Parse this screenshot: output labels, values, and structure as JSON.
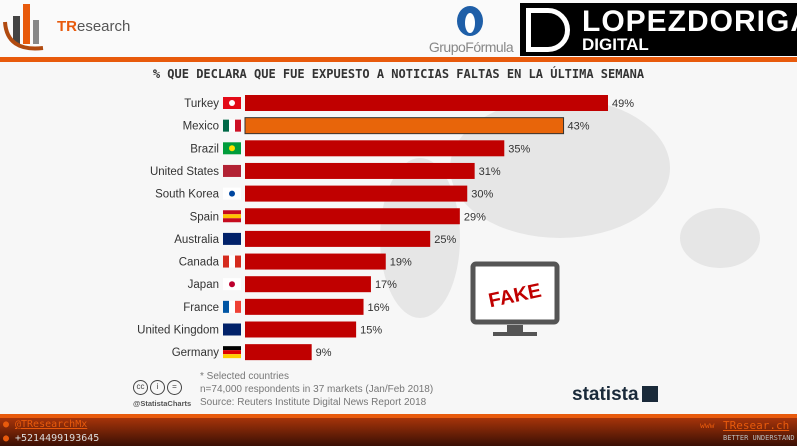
{
  "header": {
    "brand_left": "TResearch",
    "brand_left_accent": "TR",
    "brand_left_rest": "esearch",
    "logo_middle": "GrupoFórmula",
    "logo_right_line1": "LOPEZDORIGA",
    "logo_right_line2": "DIGITAL"
  },
  "chart_data": {
    "type": "bar",
    "orientation": "horizontal",
    "title": "% QUE DECLARA QUE FUE EXPUESTO A NOTICIAS FALTAS EN LA ÚLTIMA SEMANA",
    "categories": [
      "Turkey",
      "Mexico",
      "Brazil",
      "United States",
      "South Korea",
      "Spain",
      "Australia",
      "Canada",
      "Japan",
      "France",
      "United Kingdom",
      "Germany"
    ],
    "values": [
      49,
      43,
      35,
      31,
      30,
      29,
      25,
      19,
      17,
      16,
      15,
      9
    ],
    "data_labels": [
      "49%",
      "43%",
      "35%",
      "31%",
      "30%",
      "29%",
      "25%",
      "19%",
      "17%",
      "16%",
      "15%",
      "9%"
    ],
    "unit": "%",
    "xlim": [
      0,
      50
    ],
    "grid": false,
    "colors": {
      "default": "#c00000",
      "highlight": "#e8650a"
    },
    "highlight": "Mexico"
  },
  "overlay": {
    "fake_label": "FAKE"
  },
  "notes": {
    "line1": "* Selected countries",
    "line2": "n=74,000 respondents in 37 markets (Jan/Feb 2018)",
    "line3": "Source: Reuters Institute Digital News Report 2018",
    "handle": "@StatistaCharts",
    "brand": "statista"
  },
  "footer": {
    "twitter": "@TResearchMx",
    "phone": "+5214499193645",
    "site": "TResear.ch",
    "tagline": "BETTER UNDERSTAND"
  }
}
